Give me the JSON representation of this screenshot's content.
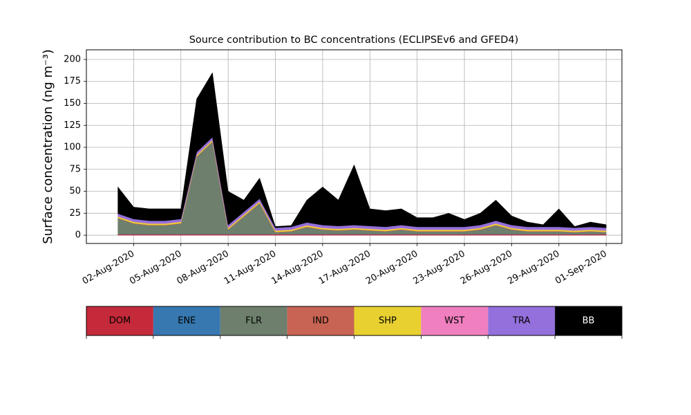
{
  "chart_data": {
    "type": "stacked_area",
    "title": "Source contribution to BC concentrations (ECLIPSEv6 and GFED4)",
    "y_label": "Surface concentration (ng m⁻³)",
    "x": [
      "2020-08-01",
      "2020-08-02",
      "2020-08-03",
      "2020-08-04",
      "2020-08-05",
      "2020-08-06",
      "2020-08-07",
      "2020-08-08",
      "2020-08-09",
      "2020-08-10",
      "2020-08-11",
      "2020-08-12",
      "2020-08-13",
      "2020-08-14",
      "2020-08-15",
      "2020-08-16",
      "2020-08-17",
      "2020-08-18",
      "2020-08-19",
      "2020-08-20",
      "2020-08-21",
      "2020-08-22",
      "2020-08-23",
      "2020-08-24",
      "2020-08-25",
      "2020-08-26",
      "2020-08-27",
      "2020-08-28",
      "2020-08-29",
      "2020-08-30",
      "2020-08-31",
      "2020-09-01"
    ],
    "series": [
      {
        "name": "DOM",
        "color": "#c52a3a",
        "values": [
          1,
          1,
          1,
          1,
          1,
          1,
          1,
          1,
          1,
          1,
          1,
          1,
          1,
          1,
          1,
          1,
          1,
          1,
          1,
          1,
          1,
          1,
          1,
          1,
          1,
          1,
          1,
          1,
          1,
          1,
          1,
          1
        ]
      },
      {
        "name": "ENE",
        "color": "#3778b0",
        "values": [
          0.2,
          0.2,
          0.2,
          0.2,
          0.2,
          0.2,
          0.2,
          0.2,
          0.2,
          0.2,
          0.2,
          0.2,
          0.2,
          0.2,
          0.2,
          0.2,
          0.2,
          0.2,
          0.2,
          0.2,
          0.2,
          0.2,
          0.2,
          0.2,
          0.2,
          0.2,
          0.2,
          0.2,
          0.2,
          0.2,
          0.2,
          0.2
        ]
      },
      {
        "name": "FLR",
        "color": "#6e7f6e",
        "values": [
          18,
          12,
          10,
          10,
          12,
          88,
          105,
          5,
          20,
          35,
          2,
          3,
          8,
          5,
          4,
          5,
          4,
          3,
          5,
          3,
          3,
          3,
          3,
          5,
          10,
          5,
          3,
          3,
          3,
          2,
          3,
          2
        ]
      },
      {
        "name": "IND",
        "color": "#c86454",
        "values": [
          0.5,
          0.5,
          0.5,
          0.5,
          0.5,
          0.5,
          0.5,
          0.5,
          0.5,
          0.5,
          0.5,
          0.5,
          0.5,
          0.5,
          0.5,
          0.5,
          0.5,
          0.5,
          0.5,
          0.5,
          0.5,
          0.5,
          0.5,
          0.5,
          0.5,
          0.5,
          0.5,
          0.5,
          0.5,
          0.5,
          0.5,
          0.5
        ]
      },
      {
        "name": "SHP",
        "color": "#e8d030",
        "values": [
          1.5,
          1.5,
          1.5,
          1.5,
          1.5,
          1.5,
          1.5,
          1.5,
          1.5,
          1.5,
          1.5,
          1.5,
          1.5,
          1.5,
          1.5,
          1.5,
          1.5,
          1.5,
          1.5,
          1.5,
          1.5,
          1.5,
          1.5,
          1.5,
          1.5,
          1.5,
          1.5,
          1.5,
          1.5,
          1.5,
          1.5,
          1.5
        ]
      },
      {
        "name": "WST",
        "color": "#f07fbf",
        "values": [
          0.3,
          0.3,
          0.3,
          0.3,
          0.3,
          0.3,
          0.3,
          0.3,
          0.3,
          0.3,
          0.3,
          0.3,
          0.3,
          0.3,
          0.3,
          0.3,
          0.3,
          0.3,
          0.3,
          0.3,
          0.3,
          0.3,
          0.3,
          0.3,
          0.3,
          0.3,
          0.3,
          0.3,
          0.3,
          0.3,
          0.3,
          0.3
        ]
      },
      {
        "name": "TRA",
        "color": "#9370db",
        "values": [
          3,
          3,
          3,
          3,
          3,
          3,
          3,
          3,
          3,
          3,
          3,
          3,
          3,
          3,
          3,
          3,
          3,
          3,
          3,
          3,
          3,
          3,
          3,
          3,
          3,
          3,
          3,
          3,
          3,
          3,
          3,
          3
        ]
      },
      {
        "name": "BB",
        "color": "#000000",
        "values": [
          30.5,
          13.5,
          13.5,
          13.5,
          11.5,
          60.5,
          73.5,
          38.5,
          13.5,
          23.5,
          1.5,
          1.5,
          25.5,
          43.5,
          29.5,
          68.5,
          19.5,
          18.5,
          18.5,
          10.5,
          10.5,
          15.5,
          8.5,
          13.5,
          23.5,
          10.5,
          5.5,
          2.5,
          20.5,
          1.5,
          5.5,
          3.5
        ]
      }
    ],
    "xlim": [
      "2020-07-30",
      "2020-09-02"
    ],
    "xticks": [
      {
        "value": "2020-08-02",
        "label": "02-Aug-2020"
      },
      {
        "value": "2020-08-05",
        "label": "05-Aug-2020"
      },
      {
        "value": "2020-08-08",
        "label": "08-Aug-2020"
      },
      {
        "value": "2020-08-11",
        "label": "11-Aug-2020"
      },
      {
        "value": "2020-08-14",
        "label": "14-Aug-2020"
      },
      {
        "value": "2020-08-17",
        "label": "17-Aug-2020"
      },
      {
        "value": "2020-08-20",
        "label": "20-Aug-2020"
      },
      {
        "value": "2020-08-23",
        "label": "23-Aug-2020"
      },
      {
        "value": "2020-08-26",
        "label": "26-Aug-2020"
      },
      {
        "value": "2020-08-29",
        "label": "29-Aug-2020"
      },
      {
        "value": "2020-09-01",
        "label": "01-Sep-2020"
      }
    ],
    "ylim": [
      -9.4,
      211
    ],
    "yticks": [
      0,
      25,
      50,
      75,
      100,
      125,
      150,
      175,
      200
    ],
    "grid": true,
    "legend": "lower center"
  }
}
